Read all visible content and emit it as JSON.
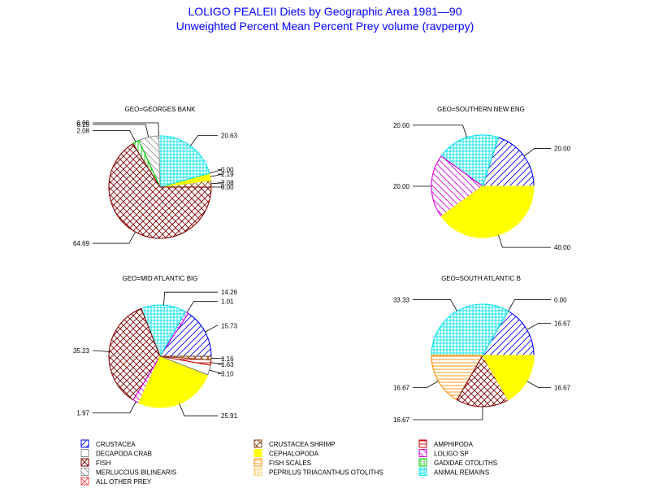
{
  "title": "LOLIGO PEALEII Diets by Geographic Area 1981—90",
  "subtitle": "Unweighted Percent Mean Percent Prey  volume (ravperpy)",
  "colors": {
    "crustacea": "#0000ff",
    "crustacea_shrimp": "#8b4513",
    "amphipoda": "#cc0000",
    "decapoda_crab": "#888888",
    "cephalopoda": "#ffff00",
    "loligo_sp": "#dd00dd",
    "fish": "#800000",
    "fish_scales": "#ff8c00",
    "gadidae_otoliths": "#00cc00",
    "merluccius_bilinearis": "#999999",
    "peprilus_triacanthus_otoliths": "#ffd27f",
    "animal_remains": "#00e5ee",
    "all_other_prey": "#ff4444"
  },
  "legend": [
    {
      "key": "crustacea",
      "label": "CRUSTACEA",
      "pattern": "diag-fwd"
    },
    {
      "key": "crustacea_shrimp",
      "label": "CRUSTACEA SHRIMP",
      "pattern": "cross-diag"
    },
    {
      "key": "amphipoda",
      "label": "AMPHIPODA",
      "pattern": "horiz"
    },
    {
      "key": "decapoda_crab",
      "label": "DECAPODA CRAB",
      "pattern": "empty"
    },
    {
      "key": "cephalopoda",
      "label": "CEPHALOPODA",
      "pattern": "solid"
    },
    {
      "key": "loligo_sp",
      "label": "LOLIGO SP",
      "pattern": "diag-back"
    },
    {
      "key": "fish",
      "label": "FISH",
      "pattern": "cross-diag"
    },
    {
      "key": "fish_scales",
      "label": "FISH SCALES",
      "pattern": "horiz"
    },
    {
      "key": "gadidae_otoliths",
      "label": "GADIDAE OTOLITHS",
      "pattern": "vert"
    },
    {
      "key": "merluccius_bilinearis",
      "label": "MERLUCCIUS BILINEARIS",
      "pattern": "diag-back"
    },
    {
      "key": "peprilus_triacanthus_otoliths",
      "label": "PEPRILUS TRIACANTHUS OTOLITHS",
      "pattern": "cross"
    },
    {
      "key": "animal_remains",
      "label": "ANIMAL REMAINS",
      "pattern": "cross"
    },
    {
      "key": "all_other_prey",
      "label": "ALL OTHER PREY",
      "pattern": "cross-diag"
    }
  ],
  "chart_data": [
    {
      "type": "pie",
      "title": "GEO=GEORGES BANK",
      "slices": [
        {
          "category": "crustacea",
          "value": 0.0,
          "label": "0.00"
        },
        {
          "category": "crustacea_shrimp",
          "value": 2.08,
          "label": "2.08"
        },
        {
          "category": "cephalopoda",
          "value": 2.19,
          "label": "2.19"
        },
        {
          "category": "amphipoda",
          "value": 0.0,
          "label": "0.00"
        },
        {
          "category": "animal_remains",
          "value": 20.63,
          "label": "20.63"
        },
        {
          "category": "fish_scales",
          "value": 0.0,
          "label": "0.00"
        },
        {
          "category": "merluccius_bilinearis",
          "value": 6.25,
          "label": "6.25"
        },
        {
          "category": "gadidae_otoliths",
          "value": 2.08,
          "label": "2.08"
        },
        {
          "category": "fish",
          "value": 64.69,
          "label": "64.69"
        }
      ]
    },
    {
      "type": "pie",
      "title": "GEO=SOUTHERN NEW ENG",
      "slices": [
        {
          "category": "crustacea",
          "value": 20.0,
          "label": "20.00"
        },
        {
          "category": "animal_remains",
          "value": 20.0,
          "label": "20.00"
        },
        {
          "category": "loligo_sp",
          "value": 20.0,
          "label": "20.00"
        },
        {
          "category": "cephalopoda",
          "value": 40.0,
          "label": "40.00"
        }
      ]
    },
    {
      "type": "pie",
      "title": "GEO=MID ATLANTIC BIG",
      "slices": [
        {
          "category": "crustacea",
          "value": 15.73,
          "label": "15.73"
        },
        {
          "category": "loligo_sp",
          "value": 1.01,
          "label": "1.01"
        },
        {
          "category": "animal_remains",
          "value": 14.26,
          "label": "14.26"
        },
        {
          "category": "fish",
          "value": 35.23,
          "label": "35.23"
        },
        {
          "category": "loligo_sp",
          "value": 1.97,
          "label": "1.97"
        },
        {
          "category": "cephalopoda",
          "value": 25.91,
          "label": "25.91"
        },
        {
          "category": "decapoda_crab",
          "value": 3.1,
          "label": "3.10"
        },
        {
          "category": "amphipoda",
          "value": 1.63,
          "label": "1.63"
        },
        {
          "category": "crustacea_shrimp",
          "value": 1.16,
          "label": "1.16"
        }
      ]
    },
    {
      "type": "pie",
      "title": "GEO=SOUTH ATLANTIC B",
      "slices": [
        {
          "category": "crustacea",
          "value": 16.67,
          "label": "16.67"
        },
        {
          "category": "loligo_sp",
          "value": 0.0,
          "label": "0.00"
        },
        {
          "category": "animal_remains",
          "value": 33.33,
          "label": "33.33"
        },
        {
          "category": "fish_scales",
          "value": 16.67,
          "label": "16.67"
        },
        {
          "category": "fish",
          "value": 16.67,
          "label": "16.67"
        },
        {
          "category": "cephalopoda",
          "value": 16.67,
          "label": "16.67"
        }
      ]
    }
  ]
}
